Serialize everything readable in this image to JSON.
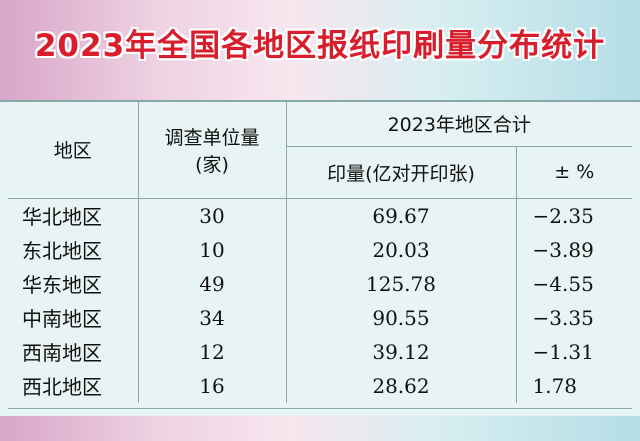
{
  "title": "2023年全国各地区报纸印刷量分布统计",
  "table": {
    "headers": {
      "region": "地区",
      "units_line1": "调查单位量",
      "units_line2": "(家)",
      "group": "2023年地区合计",
      "volume": "印量(亿对开印张)",
      "change": "± %"
    },
    "rows": [
      {
        "region": "华北地区",
        "units": "30",
        "volume": "69.67",
        "change": "−2.35"
      },
      {
        "region": "东北地区",
        "units": "10",
        "volume": "20.03",
        "change": "−3.89"
      },
      {
        "region": "华东地区",
        "units": "49",
        "volume": "125.78",
        "change": "−4.55"
      },
      {
        "region": "中南地区",
        "units": "34",
        "volume": "90.55",
        "change": "−3.35"
      },
      {
        "region": "西南地区",
        "units": "12",
        "volume": "39.12",
        "change": "−1.31"
      },
      {
        "region": "西北地区",
        "units": "16",
        "volume": "28.62",
        "change": "1.78"
      }
    ]
  }
}
